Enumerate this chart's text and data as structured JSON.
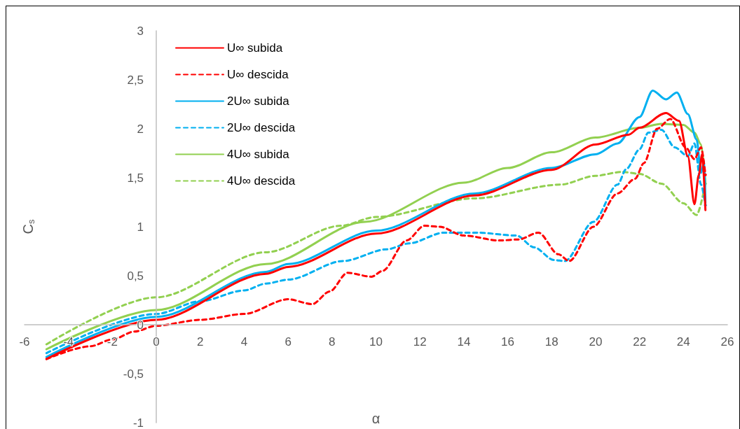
{
  "chart_data": {
    "type": "line",
    "xlabel": "α",
    "ylabel": "C$_{s}$",
    "xlim": [
      -6,
      26
    ],
    "xticks": [
      -6,
      -4,
      -2,
      0,
      2,
      4,
      6,
      8,
      10,
      12,
      14,
      16,
      18,
      20,
      22,
      24,
      26
    ],
    "ylim": [
      -1,
      3
    ],
    "yticks": [
      {
        "value": -1,
        "label": "-1"
      },
      {
        "value": -0.5,
        "label": "-0,5"
      },
      {
        "value": 0,
        "label": "0"
      },
      {
        "value": 0.5,
        "label": "0,5"
      },
      {
        "value": 1,
        "label": "1"
      },
      {
        "value": 1.5,
        "label": "1,5"
      },
      {
        "value": 2,
        "label": "2"
      },
      {
        "value": 2.5,
        "label": "2,5"
      },
      {
        "value": 3,
        "label": "3"
      }
    ],
    "grid": false,
    "legend": "top left",
    "marker": "none",
    "series": [
      {
        "name": "U∞ subida",
        "color": "#ff0000",
        "line_style": "solid",
        "x": [
          -5,
          0,
          5,
          6,
          10,
          14.5,
          18,
          20,
          21.5,
          22,
          23.2,
          23.8,
          24.2,
          24.5,
          24.7,
          24.85,
          25
        ],
        "values": [
          -0.35,
          0.05,
          0.52,
          0.59,
          0.93,
          1.32,
          1.58,
          1.84,
          1.94,
          2.01,
          2.16,
          2.08,
          1.72,
          1.23,
          1.53,
          1.74,
          1.17
        ]
      },
      {
        "name": "U∞ descida",
        "color": "#ff0000",
        "line_style": "dashed",
        "x": [
          -5,
          -3,
          -2,
          -1,
          0,
          2,
          4,
          6,
          7.1,
          7.9,
          8.7,
          9.8,
          10.3,
          11.4,
          12.2,
          12.9,
          14,
          15.6,
          16.5,
          17.4,
          18.3,
          18.8,
          19.9,
          21,
          21.8,
          22.2,
          22.8,
          23.4,
          24.1,
          24.5,
          24.8,
          25
        ],
        "values": [
          -0.35,
          -0.22,
          -0.15,
          -0.07,
          -0.01,
          0.05,
          0.11,
          0.26,
          0.21,
          0.34,
          0.53,
          0.49,
          0.55,
          0.86,
          1.01,
          1,
          0.91,
          0.86,
          0.87,
          0.94,
          0.72,
          0.65,
          1,
          1.34,
          1.49,
          1.65,
          2,
          2.1,
          1.81,
          1.69,
          1.81,
          1.53
        ]
      },
      {
        "name": "2U∞ subida",
        "color": "#00b0f0",
        "line_style": "solid",
        "x": [
          -5,
          0,
          5,
          6,
          10,
          14.5,
          18,
          20,
          21,
          22,
          22.6,
          23.2,
          23.7,
          24.2,
          24.6,
          24.8,
          24.95,
          25
        ],
        "values": [
          -0.33,
          0.08,
          0.54,
          0.62,
          0.96,
          1.34,
          1.6,
          1.74,
          1.85,
          2.12,
          2.39,
          2.3,
          2.37,
          2.15,
          1.89,
          1.55,
          1.67,
          1.24
        ]
      },
      {
        "name": "2U∞ descida",
        "color": "#00b0f0",
        "line_style": "dashed",
        "x": [
          -5,
          0,
          2,
          4,
          5,
          6,
          8.5,
          10.5,
          11.5,
          13.1,
          14.6,
          16.4,
          17.2,
          18.1,
          18.6,
          19.9,
          21,
          21.4,
          22,
          22.4,
          23,
          23.6,
          24.2,
          24.5,
          24.8,
          25
        ],
        "values": [
          -0.29,
          0.11,
          0.24,
          0.35,
          0.42,
          0.46,
          0.65,
          0.77,
          0.83,
          0.94,
          0.94,
          0.91,
          0.79,
          0.66,
          0.65,
          1.05,
          1.43,
          1.59,
          1.79,
          1.96,
          1.99,
          1.81,
          1.72,
          1.85,
          1.43,
          1.22
        ]
      },
      {
        "name": "4U∞ subida",
        "color": "#92d050",
        "line_style": "solid",
        "x": [
          -5,
          0,
          5,
          9.5,
          14,
          16,
          18,
          20,
          22,
          23,
          24,
          24.5,
          24.8,
          25
        ],
        "values": [
          -0.25,
          0.15,
          0.62,
          1.05,
          1.45,
          1.6,
          1.76,
          1.91,
          2.01,
          2.05,
          2.04,
          1.96,
          1.84,
          1.44
        ]
      },
      {
        "name": "4U∞ descida",
        "color": "#92d050",
        "line_style": "dashed",
        "x": [
          -5,
          0,
          5,
          8.4,
          10,
          14.5,
          18.4,
          20,
          21.2,
          22,
          23,
          24,
          24.6,
          25
        ],
        "values": [
          -0.2,
          0.28,
          0.74,
          1.01,
          1.1,
          1.29,
          1.43,
          1.52,
          1.56,
          1.54,
          1.44,
          1.24,
          1.12,
          1.44
        ]
      }
    ]
  }
}
